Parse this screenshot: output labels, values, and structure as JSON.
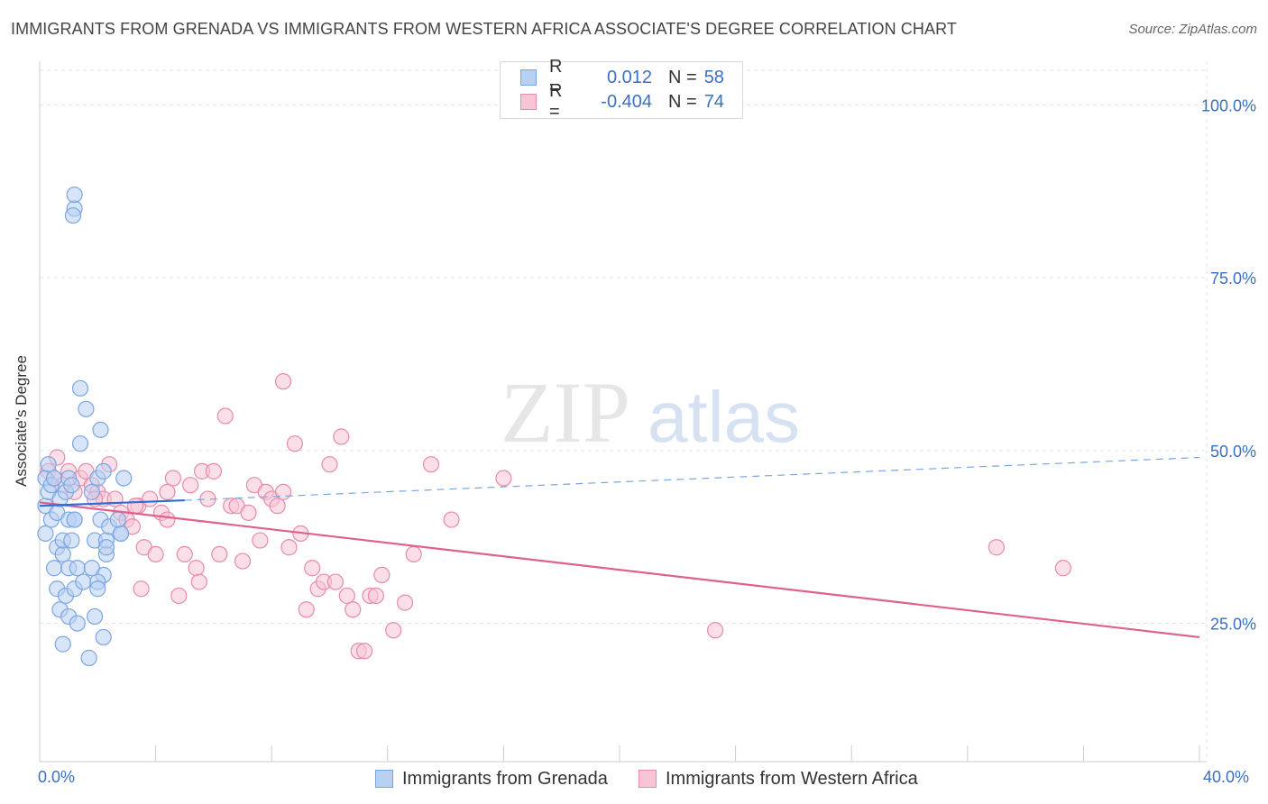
{
  "title": "IMMIGRANTS FROM GRENADA VS IMMIGRANTS FROM WESTERN AFRICA ASSOCIATE'S DEGREE CORRELATION CHART",
  "source": "Source: ZipAtlas.com",
  "watermark": {
    "zip": "ZIP",
    "atlas": "atlas"
  },
  "colors": {
    "blue": "#7aa6e0",
    "blue_fill": "#b8d0f2",
    "blue_line": "#2f6cd4",
    "pink": "#e88aaa",
    "pink_fill": "#f7c5d5",
    "pink_line": "#e0608e",
    "axis_text": "#3a6fc4"
  },
  "legend": {
    "rows": [
      {
        "r_label": "R =",
        "r_value": "0.012",
        "n_label": "N =",
        "n_value": "58"
      },
      {
        "r_label": "R =",
        "r_value": "-0.404",
        "n_label": "N =",
        "n_value": "74"
      }
    ]
  },
  "chart_data": {
    "type": "scatter",
    "title": "IMMIGRANTS FROM GRENADA VS IMMIGRANTS FROM WESTERN AFRICA ASSOCIATE'S DEGREE CORRELATION CHART",
    "xlabel": "",
    "ylabel": "Associate's Degree",
    "xlim": [
      0,
      40
    ],
    "ylim": [
      5,
      105
    ],
    "x_tick_labels": [
      "0.0%",
      "40.0%"
    ],
    "y_ticks": [
      25,
      50,
      75,
      100
    ],
    "y_tick_labels": [
      "25.0%",
      "50.0%",
      "75.0%",
      "100.0%"
    ],
    "grid": true,
    "series": [
      {
        "name": "Immigrants from Grenada",
        "color": "#7aa6e0",
        "trend": {
          "x": [
            0,
            5
          ],
          "y": [
            42,
            42.8
          ],
          "dashed_extension": {
            "x": [
              5,
              40
            ],
            "y": [
              42.8,
              49
            ]
          }
        },
        "points": [
          [
            0.2,
            46
          ],
          [
            0.2,
            42
          ],
          [
            0.2,
            38
          ],
          [
            0.3,
            44
          ],
          [
            0.3,
            48
          ],
          [
            0.4,
            45
          ],
          [
            0.4,
            40
          ],
          [
            0.5,
            33
          ],
          [
            0.5,
            46
          ],
          [
            0.6,
            41
          ],
          [
            0.6,
            36
          ],
          [
            0.6,
            30
          ],
          [
            0.7,
            43
          ],
          [
            0.7,
            27
          ],
          [
            0.8,
            35
          ],
          [
            0.8,
            37
          ],
          [
            0.8,
            22
          ],
          [
            0.9,
            29
          ],
          [
            0.9,
            44
          ],
          [
            1.0,
            46
          ],
          [
            1.0,
            40
          ],
          [
            1.0,
            33
          ],
          [
            1.0,
            26
          ],
          [
            1.1,
            45
          ],
          [
            1.1,
            37
          ],
          [
            1.2,
            40
          ],
          [
            1.2,
            30
          ],
          [
            1.3,
            33
          ],
          [
            1.3,
            25
          ],
          [
            1.4,
            59
          ],
          [
            1.4,
            51
          ],
          [
            1.5,
            31
          ],
          [
            1.6,
            56
          ],
          [
            1.7,
            20
          ],
          [
            1.8,
            44
          ],
          [
            1.2,
            85
          ],
          [
            1.15,
            84
          ],
          [
            1.2,
            87
          ],
          [
            1.2,
            40
          ],
          [
            1.9,
            37
          ],
          [
            2.0,
            46
          ],
          [
            2.2,
            47
          ],
          [
            2.3,
            35
          ],
          [
            2.3,
            37
          ],
          [
            2.2,
            32
          ],
          [
            2.3,
            36
          ],
          [
            2.0,
            31
          ],
          [
            2.1,
            40
          ],
          [
            2.4,
            39
          ],
          [
            2.8,
            38
          ],
          [
            2.9,
            46
          ],
          [
            2.8,
            38
          ],
          [
            2.7,
            40
          ],
          [
            2.2,
            23
          ],
          [
            2.1,
            53
          ],
          [
            2.0,
            30
          ],
          [
            1.9,
            26
          ],
          [
            1.8,
            33
          ]
        ]
      },
      {
        "name": "Immigrants from Western Africa",
        "color": "#e88aaa",
        "trend": {
          "x": [
            0,
            40
          ],
          "y": [
            42.5,
            23
          ]
        },
        "points": [
          [
            0.3,
            47
          ],
          [
            0.5,
            46
          ],
          [
            0.6,
            49
          ],
          [
            0.8,
            45
          ],
          [
            1.0,
            47
          ],
          [
            1.2,
            44
          ],
          [
            1.4,
            46
          ],
          [
            1.6,
            47
          ],
          [
            1.8,
            45
          ],
          [
            2.0,
            44
          ],
          [
            2.2,
            43
          ],
          [
            2.4,
            48
          ],
          [
            2.6,
            43
          ],
          [
            2.8,
            41
          ],
          [
            3.0,
            40
          ],
          [
            3.2,
            39
          ],
          [
            3.4,
            42
          ],
          [
            3.6,
            36
          ],
          [
            3.8,
            43
          ],
          [
            4.0,
            35
          ],
          [
            4.2,
            41
          ],
          [
            4.4,
            44
          ],
          [
            4.6,
            46
          ],
          [
            4.8,
            29
          ],
          [
            5.0,
            35
          ],
          [
            5.2,
            45
          ],
          [
            5.4,
            33
          ],
          [
            5.6,
            47
          ],
          [
            5.8,
            43
          ],
          [
            6.0,
            47
          ],
          [
            6.2,
            35
          ],
          [
            6.4,
            55
          ],
          [
            6.6,
            42
          ],
          [
            6.8,
            42
          ],
          [
            7.0,
            34
          ],
          [
            7.2,
            41
          ],
          [
            7.4,
            45
          ],
          [
            7.6,
            37
          ],
          [
            7.8,
            44
          ],
          [
            8.0,
            43
          ],
          [
            8.2,
            42
          ],
          [
            8.4,
            44
          ],
          [
            8.6,
            36
          ],
          [
            8.8,
            51
          ],
          [
            9.0,
            38
          ],
          [
            9.2,
            27
          ],
          [
            9.4,
            33
          ],
          [
            9.6,
            30
          ],
          [
            9.8,
            31
          ],
          [
            10.0,
            48
          ],
          [
            10.2,
            31
          ],
          [
            10.4,
            52
          ],
          [
            10.6,
            29
          ],
          [
            10.8,
            27
          ],
          [
            11.0,
            21
          ],
          [
            11.2,
            21
          ],
          [
            11.4,
            29
          ],
          [
            11.6,
            29
          ],
          [
            11.8,
            32
          ],
          [
            12.2,
            24
          ],
          [
            12.6,
            28
          ],
          [
            12.9,
            35
          ],
          [
            13.5,
            48
          ],
          [
            14.2,
            40
          ],
          [
            16.0,
            46
          ],
          [
            23.3,
            24
          ],
          [
            33.0,
            36
          ],
          [
            35.3,
            33
          ],
          [
            8.4,
            60
          ],
          [
            5.5,
            31
          ],
          [
            3.5,
            30
          ],
          [
            4.4,
            40
          ],
          [
            3.3,
            42
          ],
          [
            1.9,
            43
          ]
        ]
      }
    ]
  },
  "bottom_legend": [
    {
      "label": "Immigrants from Grenada"
    },
    {
      "label": "Immigrants from Western Africa"
    }
  ]
}
